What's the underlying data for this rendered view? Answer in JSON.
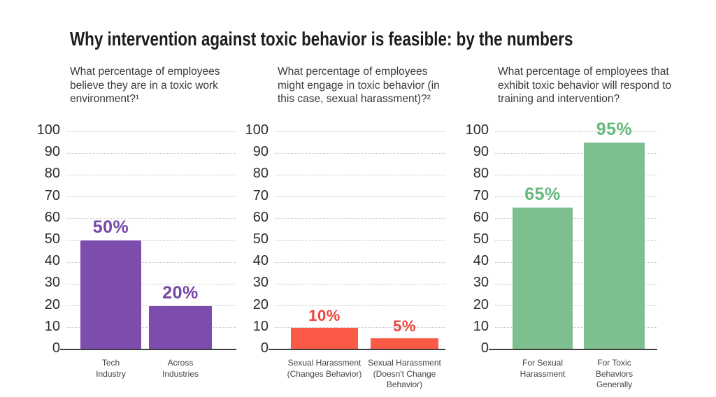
{
  "title": "Why intervention against toxic behavior is feasible: by the numbers",
  "chart_data": [
    {
      "type": "bar",
      "title": "What percentage of employees believe they are in a toxic work environment?¹",
      "categories": [
        [
          "Tech",
          "Industry"
        ],
        [
          "Across",
          "Industries"
        ]
      ],
      "values": [
        50,
        20
      ],
      "value_labels": [
        "50%",
        "20%"
      ],
      "bar_color": "#7c4dad",
      "label_color": "#7646a6",
      "ylim": [
        0,
        100
      ],
      "ytick_step": 10,
      "grid": "dotted",
      "legend": "none"
    },
    {
      "type": "bar",
      "title": "What percentage of employees might engage in toxic behavior (in this case, sexual harassment)?²",
      "categories": [
        [
          "Sexual Harassment",
          "(Changes Behavior)"
        ],
        [
          "Sexual Harassment",
          "(Doesn't Change",
          "Behavior)"
        ]
      ],
      "values": [
        10,
        5
      ],
      "value_labels": [
        "10%",
        "5%"
      ],
      "bar_color": "#fb5a47",
      "label_color": "#ef4338",
      "ylim": [
        0,
        100
      ],
      "ytick_step": 10,
      "grid": "dotted",
      "legend": "none"
    },
    {
      "type": "bar",
      "title": "What percentage of employees that exhibit toxic behavior will respond to training and intervention?",
      "categories": [
        [
          "For Sexual",
          "Harassment"
        ],
        [
          "For Toxic",
          "Behaviors",
          "Generally"
        ]
      ],
      "values": [
        65,
        95
      ],
      "value_labels": [
        "65%",
        "95%"
      ],
      "bar_color": "#7dbf8e",
      "label_color": "#67b87e",
      "ylim": [
        0,
        100
      ],
      "ytick_step": 10,
      "grid": "dotted",
      "legend": "none"
    }
  ],
  "axis_color": "#3f3f3f",
  "gridline_color": "#c4c4c4"
}
